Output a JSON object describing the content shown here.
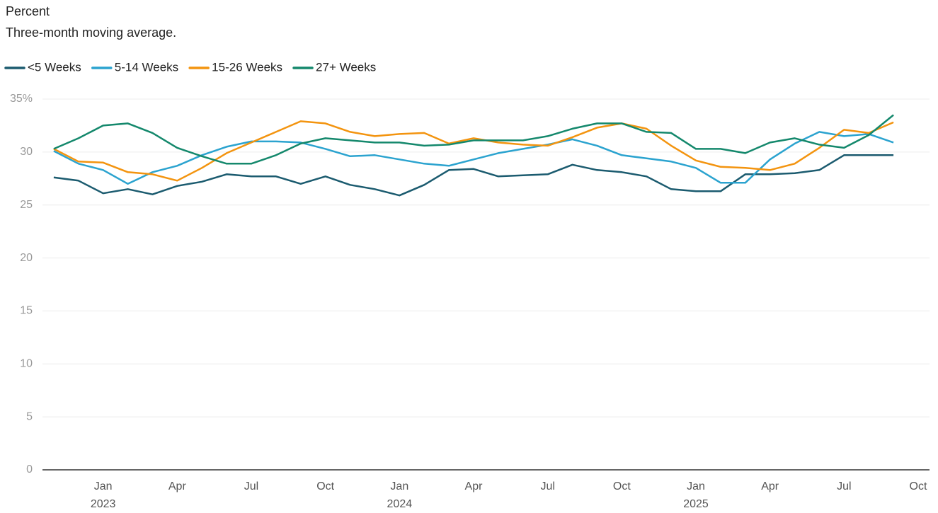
{
  "chart_data": {
    "type": "line",
    "title": "Percent",
    "subtitle": "Three-month moving average.",
    "x": [
      "2022-11",
      "2022-12",
      "2023-01",
      "2023-02",
      "2023-03",
      "2023-04",
      "2023-05",
      "2023-06",
      "2023-07",
      "2023-08",
      "2023-09",
      "2023-10",
      "2023-11",
      "2023-12",
      "2024-01",
      "2024-02",
      "2024-03",
      "2024-04",
      "2024-05",
      "2024-06",
      "2024-07",
      "2024-08",
      "2024-09",
      "2024-10",
      "2024-11",
      "2024-12",
      "2025-01",
      "2025-02",
      "2025-03",
      "2025-04",
      "2025-05",
      "2025-06",
      "2025-07",
      "2025-08",
      "2025-09"
    ],
    "series": [
      {
        "name": "<5 Weeks",
        "color": "#1b5b6f",
        "values": [
          27.6,
          27.3,
          26.1,
          26.5,
          26.0,
          26.8,
          27.2,
          27.9,
          27.7,
          27.7,
          27.0,
          27.7,
          26.9,
          26.5,
          25.9,
          26.9,
          28.3,
          28.4,
          27.7,
          27.8,
          27.9,
          28.8,
          28.3,
          28.1,
          27.7,
          26.5,
          26.3,
          26.3,
          27.9,
          27.9,
          28.0,
          28.3,
          29.7,
          29.7,
          29.7
        ]
      },
      {
        "name": "5-14 Weeks",
        "color": "#2ba3cf",
        "values": [
          30.1,
          28.9,
          28.3,
          27.0,
          28.1,
          28.7,
          29.7,
          30.5,
          31.0,
          31.0,
          30.9,
          30.3,
          29.6,
          29.7,
          29.3,
          28.9,
          28.7,
          29.3,
          29.9,
          30.3,
          30.7,
          31.2,
          30.6,
          29.7,
          29.4,
          29.1,
          28.5,
          27.1,
          27.1,
          29.3,
          30.8,
          31.9,
          31.5,
          31.7,
          30.9
        ]
      },
      {
        "name": "15-26 Weeks",
        "color": "#f3940f",
        "values": [
          30.3,
          29.1,
          29.0,
          28.1,
          27.9,
          27.3,
          28.5,
          29.9,
          30.9,
          31.9,
          32.9,
          32.7,
          31.9,
          31.5,
          31.7,
          31.8,
          30.8,
          31.3,
          30.9,
          30.7,
          30.6,
          31.4,
          32.3,
          32.7,
          32.2,
          30.6,
          29.2,
          28.6,
          28.5,
          28.3,
          28.9,
          30.4,
          32.1,
          31.8,
          32.8
        ]
      },
      {
        "name": "27+ Weeks",
        "color": "#14886c",
        "values": [
          30.3,
          31.3,
          32.5,
          32.7,
          31.8,
          30.4,
          29.6,
          28.9,
          28.9,
          29.7,
          30.8,
          31.3,
          31.1,
          30.9,
          30.9,
          30.6,
          30.7,
          31.1,
          31.1,
          31.1,
          31.5,
          32.2,
          32.7,
          32.7,
          31.9,
          31.8,
          30.3,
          30.3,
          29.9,
          30.9,
          31.3,
          30.7,
          30.4,
          31.6,
          33.5
        ]
      }
    ],
    "xlim": [
      "2022-10",
      "2025-10"
    ],
    "xticks": [
      {
        "value": "2023-01",
        "label": "Jan",
        "sublabel": "2023"
      },
      {
        "value": "2023-04",
        "label": "Apr"
      },
      {
        "value": "2023-07",
        "label": "Jul"
      },
      {
        "value": "2023-10",
        "label": "Oct"
      },
      {
        "value": "2024-01",
        "label": "Jan",
        "sublabel": "2024"
      },
      {
        "value": "2024-04",
        "label": "Apr"
      },
      {
        "value": "2024-07",
        "label": "Jul"
      },
      {
        "value": "2024-10",
        "label": "Oct"
      },
      {
        "value": "2025-01",
        "label": "Jan",
        "sublabel": "2025"
      },
      {
        "value": "2025-04",
        "label": "Apr"
      },
      {
        "value": "2025-07",
        "label": "Jul"
      },
      {
        "value": "2025-10",
        "label": "Oct"
      }
    ],
    "ylim": [
      0,
      35
    ],
    "yticks": [
      0,
      5,
      10,
      15,
      20,
      25,
      30,
      {
        "value": 35,
        "label": "35%"
      }
    ],
    "grid": true,
    "legend": "top-left"
  }
}
